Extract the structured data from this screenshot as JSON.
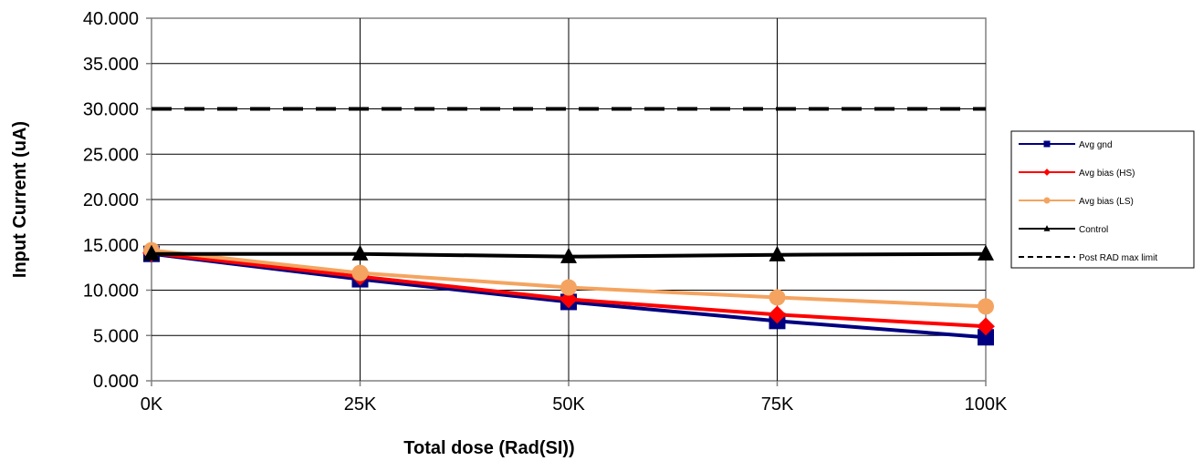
{
  "chart_data": {
    "type": "line",
    "title": "",
    "xlabel": "Total dose (Rad(SI))",
    "ylabel": "Input Current (uA)",
    "categories": [
      "0K",
      "25K",
      "50K",
      "75K",
      "100K"
    ],
    "ylim": [
      0,
      40
    ],
    "yticks": [
      "0.000",
      "5.000",
      "10.000",
      "15.000",
      "20.000",
      "25.000",
      "30.000",
      "35.000",
      "40.000"
    ],
    "grid": true,
    "legend_position": "right",
    "series": [
      {
        "name": "Avg gnd",
        "values": [
          14.0,
          11.2,
          8.7,
          6.6,
          4.8
        ],
        "color": "#000080",
        "marker": "square",
        "dash": false
      },
      {
        "name": "Avg bias (HS)",
        "values": [
          14.1,
          11.5,
          9.0,
          7.3,
          6.0
        ],
        "color": "#ff0000",
        "marker": "diamond",
        "dash": false
      },
      {
        "name": "Avg bias (LS)",
        "values": [
          14.4,
          11.9,
          10.3,
          9.2,
          8.2
        ],
        "color": "#f4a460",
        "marker": "circle",
        "dash": false
      },
      {
        "name": "Control",
        "values": [
          14.0,
          14.0,
          13.7,
          13.9,
          14.0
        ],
        "color": "#000000",
        "marker": "triangle",
        "dash": false
      },
      {
        "name": "Post RAD max limit",
        "values": [
          30.0,
          30.0,
          30.0,
          30.0,
          30.0
        ],
        "color": "#000000",
        "marker": "none",
        "dash": true
      }
    ]
  }
}
